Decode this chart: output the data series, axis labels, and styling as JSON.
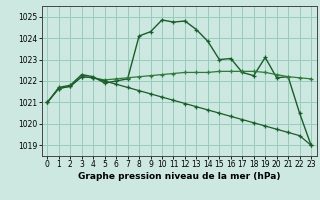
{
  "bg_color": "#cce8e0",
  "grid_color": "#99ccbb",
  "line_color1": "#1a5c2a",
  "line_color2": "#2d7a3a",
  "xlabel": "Graphe pression niveau de la mer (hPa)",
  "ylim": [
    1018.5,
    1025.5
  ],
  "xlim": [
    -0.5,
    23.5
  ],
  "yticks": [
    1019,
    1020,
    1021,
    1022,
    1023,
    1024,
    1025
  ],
  "xticks": [
    0,
    1,
    2,
    3,
    4,
    5,
    6,
    7,
    8,
    9,
    10,
    11,
    12,
    13,
    14,
    15,
    16,
    17,
    18,
    19,
    20,
    21,
    22,
    23
  ],
  "series1": [
    1021.0,
    1021.7,
    1021.8,
    1022.3,
    1022.2,
    1021.9,
    1022.0,
    1022.1,
    1024.1,
    1024.3,
    1024.85,
    1024.75,
    1024.8,
    1024.4,
    1023.85,
    1023.0,
    1023.05,
    1022.4,
    1022.25,
    1023.1,
    1022.15,
    1022.2,
    1020.5,
    1019.0
  ],
  "series2": [
    1021.0,
    1021.65,
    1021.75,
    1022.2,
    1022.15,
    1022.05,
    1022.1,
    1022.15,
    1022.2,
    1022.25,
    1022.3,
    1022.35,
    1022.4,
    1022.4,
    1022.4,
    1022.45,
    1022.45,
    1022.45,
    1022.45,
    1022.4,
    1022.3,
    1022.2,
    1022.15,
    1022.1
  ],
  "series3": [
    1021.0,
    1021.65,
    1021.75,
    1022.2,
    1022.15,
    1022.0,
    1021.85,
    1021.7,
    1021.55,
    1021.4,
    1021.25,
    1021.1,
    1020.95,
    1020.8,
    1020.65,
    1020.5,
    1020.35,
    1020.2,
    1020.05,
    1019.9,
    1019.75,
    1019.6,
    1019.45,
    1019.0
  ]
}
